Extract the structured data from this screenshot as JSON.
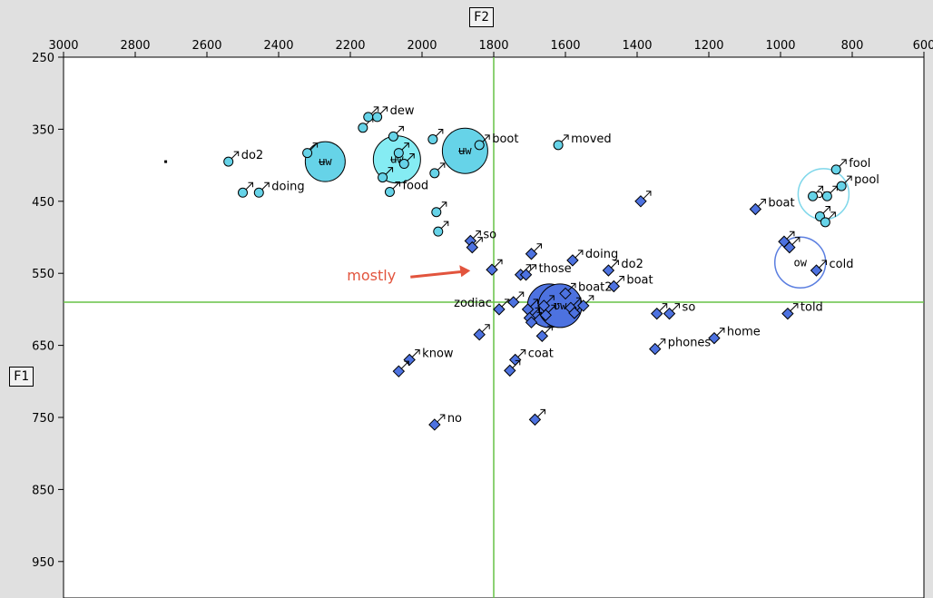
{
  "chart_data": {
    "type": "scatter",
    "x_axis": {
      "label": "F2",
      "reversed": true,
      "range": [
        3000,
        600
      ],
      "position": "top",
      "ticks": [
        "3000",
        "2800",
        "2600",
        "2400",
        "2200",
        "2000",
        "1800",
        "1600",
        "1400",
        "1200",
        "1000",
        "800",
        "600"
      ]
    },
    "y_axis": {
      "label": "F1",
      "reversed": true,
      "range": [
        250,
        1000
      ],
      "position": "left",
      "ticks": [
        "250",
        "350",
        "450",
        "550",
        "650",
        "750",
        "850",
        "950"
      ]
    },
    "reference_lines": {
      "x": 1800,
      "y": 590
    },
    "colors": {
      "u_tokens": "#66d3e8",
      "o_tokens": "#4d72e0",
      "ref_line": "#66c247",
      "annotation": "#e2543d"
    },
    "annotation": {
      "text": "mostly",
      "arrow_to": [
        1855,
        545
      ]
    },
    "centroids": [
      {
        "label": "ʉw",
        "x": 2270,
        "y": 395,
        "r": 22,
        "fill": "#66d3e8"
      },
      {
        "label": "ʉw",
        "x": 2070,
        "y": 392,
        "r": 26,
        "fill": "#85ecf3"
      },
      {
        "label": "ʉw",
        "x": 1880,
        "y": 380,
        "r": 25,
        "fill": "#66d3e8"
      },
      {
        "label": "ʊw",
        "x": 1645,
        "y": 595,
        "r": 24,
        "fill": "#4d72e0"
      },
      {
        "label": "ʊw",
        "x": 1615,
        "y": 595,
        "r": 24,
        "fill": "#4d72e0"
      },
      {
        "label": "ɔw",
        "x": 880,
        "y": 440,
        "r": 28,
        "fill": "none",
        "stroke": "#7fd7ea"
      },
      {
        "label": "ow",
        "x": 945,
        "y": 535,
        "r": 28,
        "fill": "none",
        "stroke": "#5a7ee0"
      }
    ],
    "series": [
      {
        "name": "u",
        "marker": "circle",
        "points": [
          {
            "x": 2715,
            "y": 395,
            "label": "",
            "dot": true
          },
          {
            "x": 2540,
            "y": 395,
            "label": "do2"
          },
          {
            "x": 2500,
            "y": 438,
            "label": ""
          },
          {
            "x": 2455,
            "y": 438,
            "label": "doing"
          },
          {
            "x": 2320,
            "y": 383,
            "label": ""
          },
          {
            "x": 2165,
            "y": 348,
            "label": ""
          },
          {
            "x": 2150,
            "y": 333,
            "label": ""
          },
          {
            "x": 2125,
            "y": 333,
            "label": "dew"
          },
          {
            "x": 2110,
            "y": 417,
            "label": ""
          },
          {
            "x": 2080,
            "y": 360,
            "label": ""
          },
          {
            "x": 2090,
            "y": 437,
            "label": "food"
          },
          {
            "x": 2065,
            "y": 383,
            "label": ""
          },
          {
            "x": 2050,
            "y": 398,
            "label": ""
          },
          {
            "x": 1970,
            "y": 364,
            "label": ""
          },
          {
            "x": 1965,
            "y": 411,
            "label": ""
          },
          {
            "x": 1960,
            "y": 465,
            "label": ""
          },
          {
            "x": 1955,
            "y": 492,
            "label": ""
          },
          {
            "x": 1840,
            "y": 372,
            "label": "boot"
          },
          {
            "x": 1620,
            "y": 372,
            "label": "moved"
          },
          {
            "x": 845,
            "y": 406,
            "label": "fool"
          },
          {
            "x": 830,
            "y": 429,
            "label": "pool"
          },
          {
            "x": 910,
            "y": 443,
            "label": ""
          },
          {
            "x": 870,
            "y": 443,
            "label": ""
          },
          {
            "x": 890,
            "y": 471,
            "label": ""
          },
          {
            "x": 875,
            "y": 479,
            "label": ""
          }
        ]
      },
      {
        "name": "o",
        "marker": "diamond",
        "points": [
          {
            "x": 1865,
            "y": 505,
            "label": "so"
          },
          {
            "x": 1860,
            "y": 514,
            "label": ""
          },
          {
            "x": 1805,
            "y": 545,
            "label": ""
          },
          {
            "x": 1785,
            "y": 600,
            "label": "zodiac"
          },
          {
            "x": 1840,
            "y": 635,
            "label": ""
          },
          {
            "x": 2035,
            "y": 670,
            "label": "know"
          },
          {
            "x": 2065,
            "y": 686,
            "label": ""
          },
          {
            "x": 1740,
            "y": 670,
            "label": "coat"
          },
          {
            "x": 1755,
            "y": 685,
            "label": ""
          },
          {
            "x": 1965,
            "y": 760,
            "label": "no"
          },
          {
            "x": 1685,
            "y": 753,
            "label": ""
          },
          {
            "x": 1695,
            "y": 523,
            "label": ""
          },
          {
            "x": 1725,
            "y": 552,
            "label": ""
          },
          {
            "x": 1710,
            "y": 552,
            "label": "those"
          },
          {
            "x": 1745,
            "y": 590,
            "label": ""
          },
          {
            "x": 1705,
            "y": 600,
            "label": ""
          },
          {
            "x": 1700,
            "y": 612,
            "label": ""
          },
          {
            "x": 1695,
            "y": 618,
            "label": ""
          },
          {
            "x": 1660,
            "y": 595,
            "label": ""
          },
          {
            "x": 1655,
            "y": 608,
            "label": ""
          },
          {
            "x": 1600,
            "y": 578,
            "label": "boat2"
          },
          {
            "x": 1585,
            "y": 598,
            "label": ""
          },
          {
            "x": 1575,
            "y": 605,
            "label": ""
          },
          {
            "x": 1550,
            "y": 595,
            "label": ""
          },
          {
            "x": 1665,
            "y": 637,
            "label": ""
          },
          {
            "x": 1580,
            "y": 532,
            "label": "doing"
          },
          {
            "x": 1480,
            "y": 546,
            "label": "do2"
          },
          {
            "x": 1465,
            "y": 568,
            "label": "boat"
          },
          {
            "x": 1390,
            "y": 450,
            "label": ""
          },
          {
            "x": 1345,
            "y": 606,
            "label": ""
          },
          {
            "x": 1310,
            "y": 606,
            "label": "so"
          },
          {
            "x": 1350,
            "y": 655,
            "label": "phones"
          },
          {
            "x": 1185,
            "y": 640,
            "label": "home"
          },
          {
            "x": 1070,
            "y": 461,
            "label": "boat"
          },
          {
            "x": 990,
            "y": 506,
            "label": ""
          },
          {
            "x": 975,
            "y": 514,
            "label": ""
          },
          {
            "x": 900,
            "y": 546,
            "label": "cold"
          },
          {
            "x": 980,
            "y": 606,
            "label": "told"
          }
        ]
      }
    ]
  }
}
